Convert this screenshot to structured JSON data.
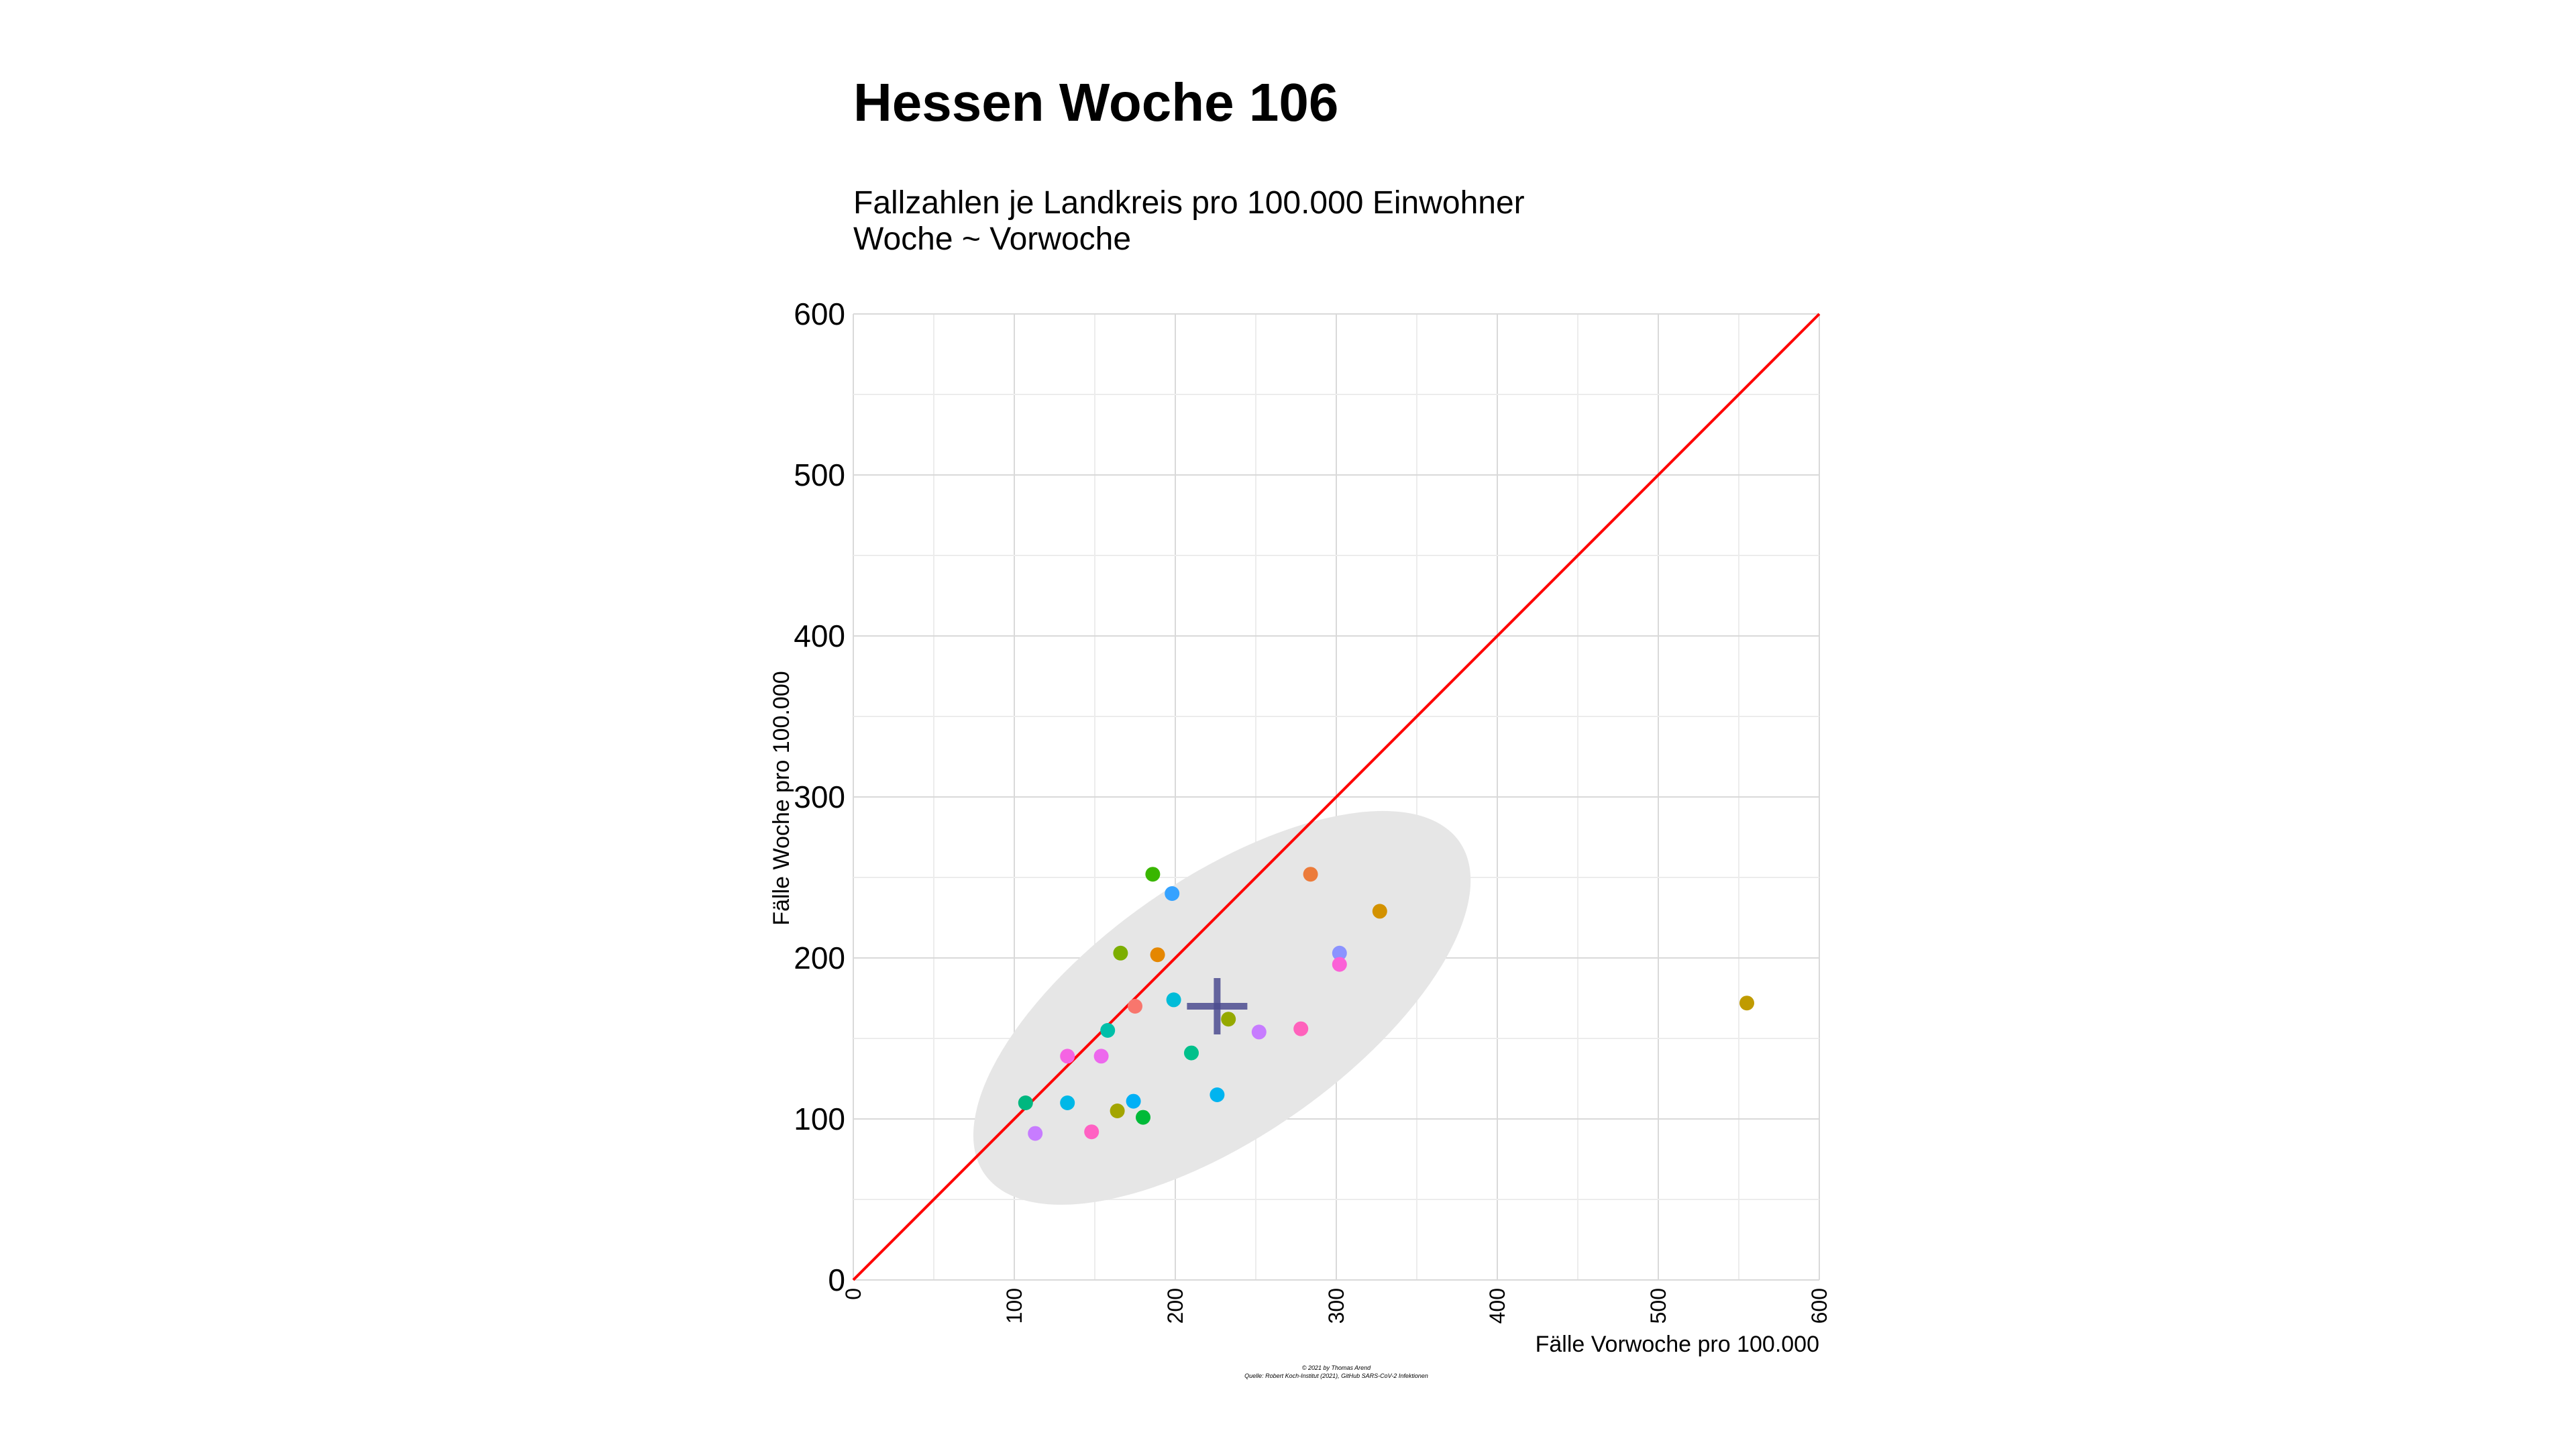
{
  "chart_data": {
    "type": "scatter",
    "title": "Hessen Woche 106",
    "subtitle_lines": [
      "Fallzahlen je Landkreis pro 100.000 Einwohner",
      "Woche ~ Vorwoche"
    ],
    "xlabel": "Fälle Vorwoche pro 100.000",
    "ylabel": "Fälle Woche pro 100.000",
    "xlim": [
      0,
      600
    ],
    "ylim": [
      0,
      600
    ],
    "x_ticks": [
      "0",
      "100",
      "200",
      "300",
      "400",
      "500",
      "600"
    ],
    "y_ticks": [
      "0",
      "100",
      "200",
      "300",
      "400",
      "500",
      "600"
    ],
    "grid": true,
    "legend": "none",
    "reference_line": {
      "slope": 1,
      "intercept": 0,
      "color": "#ff0000"
    },
    "ellipse": {
      "center": [
        229,
        169
      ],
      "rx_data": 180,
      "ry_data": 80,
      "rotation_deg": 35,
      "color": "#e6e6e6"
    },
    "mean_marker": {
      "x": 226,
      "y": 170,
      "color": "#4b4b8f"
    },
    "points": [
      {
        "x": 107,
        "y": 110,
        "color": "#00b77f"
      },
      {
        "x": 113,
        "y": 91,
        "color": "#c77cff"
      },
      {
        "x": 133,
        "y": 139,
        "color": "#f564e3"
      },
      {
        "x": 133,
        "y": 110,
        "color": "#00b8e7"
      },
      {
        "x": 148,
        "y": 92,
        "color": "#ff61c3"
      },
      {
        "x": 154,
        "y": 139,
        "color": "#ed68ed"
      },
      {
        "x": 158,
        "y": 155,
        "color": "#00bfa9"
      },
      {
        "x": 164,
        "y": 105,
        "color": "#a3a500"
      },
      {
        "x": 166,
        "y": 203,
        "color": "#7cae00"
      },
      {
        "x": 174,
        "y": 111,
        "color": "#00b0f6"
      },
      {
        "x": 175,
        "y": 170,
        "color": "#f8766d"
      },
      {
        "x": 180,
        "y": 101,
        "color": "#00ba38"
      },
      {
        "x": 186,
        "y": 252,
        "color": "#39b600"
      },
      {
        "x": 189,
        "y": 202,
        "color": "#e58700"
      },
      {
        "x": 198,
        "y": 240,
        "color": "#35a2ff"
      },
      {
        "x": 199,
        "y": 174,
        "color": "#00bcd8"
      },
      {
        "x": 210,
        "y": 141,
        "color": "#00c08b"
      },
      {
        "x": 226,
        "y": 115,
        "color": "#00b4f0"
      },
      {
        "x": 233,
        "y": 162,
        "color": "#95a900"
      },
      {
        "x": 252,
        "y": 154,
        "color": "#c77cff"
      },
      {
        "x": 278,
        "y": 156,
        "color": "#ff62bc"
      },
      {
        "x": 284,
        "y": 252,
        "color": "#ec7b3a"
      },
      {
        "x": 302,
        "y": 203,
        "color": "#8b93ff"
      },
      {
        "x": 302,
        "y": 196,
        "color": "#fb61d7"
      },
      {
        "x": 327,
        "y": 229,
        "color": "#d39200"
      },
      {
        "x": 555,
        "y": 172,
        "color": "#c09b00"
      }
    ]
  },
  "caption": {
    "line1": "© 2021 by Thomas Arend",
    "line2": "Quelle: Robert Koch-Institut (2021), GitHub SARS-CoV-2 Infektionen"
  }
}
